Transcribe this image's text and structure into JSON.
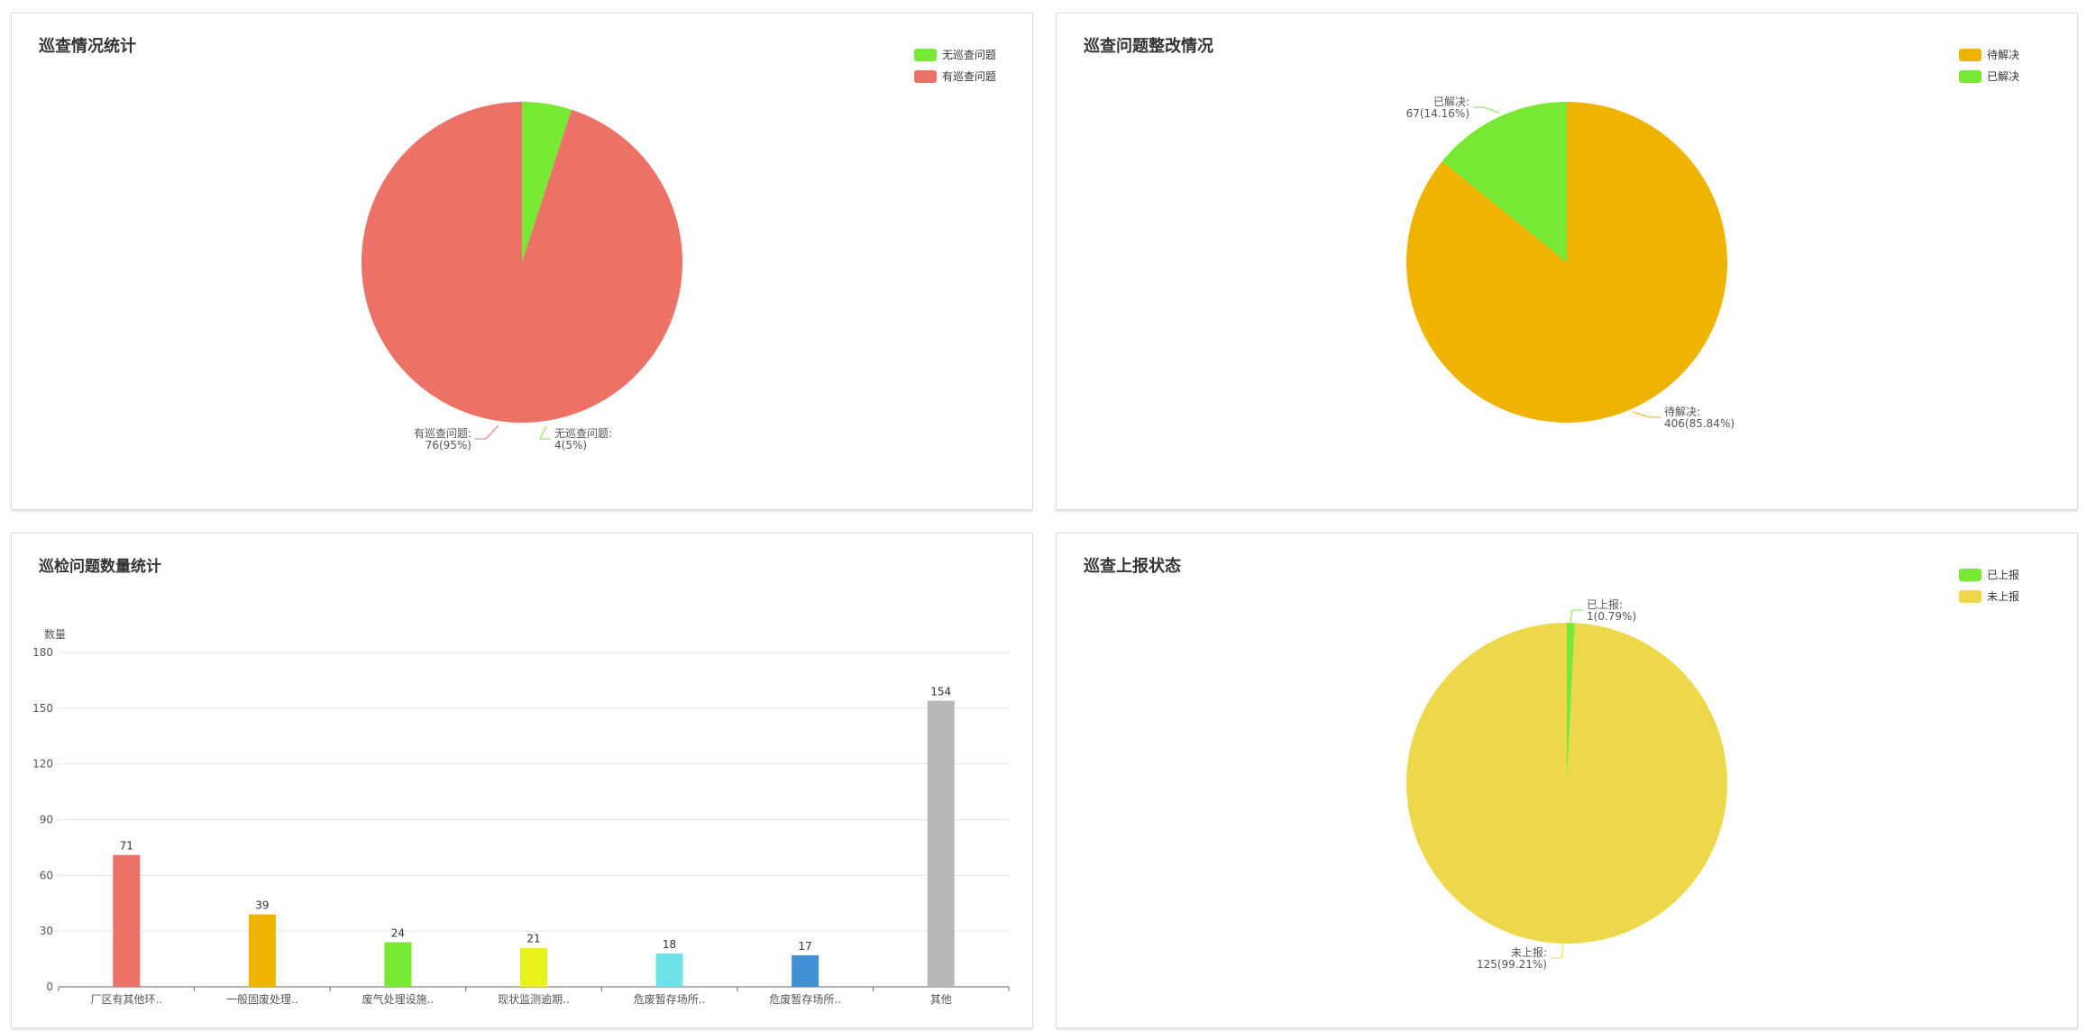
{
  "colors": {
    "green": "#77e834",
    "red": "#ec7268",
    "orange": "#efb303",
    "yellow": "#edd84b",
    "lime": "#eaf21c",
    "cyan": "#6de3e7",
    "blue": "#4391d4",
    "gray": "#b8b8b8"
  },
  "chart_data": [
    {
      "type": "pie",
      "title": "巡查情况统计",
      "legend_position": "top-right",
      "legend": [
        "无巡查问题",
        "有巡查问题"
      ],
      "slices": [
        {
          "name": "无巡查问题",
          "value": 4,
          "label_name": "无巡查问题:",
          "label_value": "4(5%)",
          "color": "#77e834"
        },
        {
          "name": "有巡查问题",
          "value": 76,
          "label_name": "有巡查问题:",
          "label_value": "76(95%)",
          "color": "#ec7268"
        }
      ]
    },
    {
      "type": "pie",
      "title": "巡查问题整改情况",
      "legend_position": "top-right",
      "legend": [
        "待解决",
        "已解决"
      ],
      "slices": [
        {
          "name": "待解决",
          "value": 406,
          "label_name": "待解决:",
          "label_value": "406(85.84%)",
          "color": "#efb303"
        },
        {
          "name": "已解决",
          "value": 67,
          "label_name": "已解决:",
          "label_value": "67(14.16%)",
          "color": "#77e834"
        }
      ]
    },
    {
      "type": "bar",
      "title": "巡检问题数量统计",
      "ylabel": "数量",
      "ylim": [
        0,
        180
      ],
      "yticks": [
        "0",
        "30",
        "60",
        "90",
        "120",
        "150",
        "180"
      ],
      "grid": true,
      "categories": [
        "厂区有其他环..",
        "一般固废处理..",
        "废气处理设施..",
        "现状监测逾期..",
        "危废暂存场所..",
        "危废暂存场所..",
        "其他"
      ],
      "values": [
        71,
        39,
        24,
        21,
        18,
        17,
        154
      ],
      "colors": [
        "#ec7268",
        "#efb303",
        "#77e834",
        "#eaf21c",
        "#6de3e7",
        "#4391d4",
        "#b8b8b8"
      ]
    },
    {
      "type": "pie",
      "title": "巡查上报状态",
      "legend_position": "top-right",
      "legend": [
        "已上报",
        "未上报"
      ],
      "slices": [
        {
          "name": "已上报",
          "value": 1,
          "label_name": "已上报:",
          "label_value": "1(0.79%)",
          "color": "#77e834"
        },
        {
          "name": "未上报",
          "value": 125,
          "label_name": "未上报:",
          "label_value": "125(99.21%)",
          "color": "#edd84b"
        }
      ]
    }
  ]
}
